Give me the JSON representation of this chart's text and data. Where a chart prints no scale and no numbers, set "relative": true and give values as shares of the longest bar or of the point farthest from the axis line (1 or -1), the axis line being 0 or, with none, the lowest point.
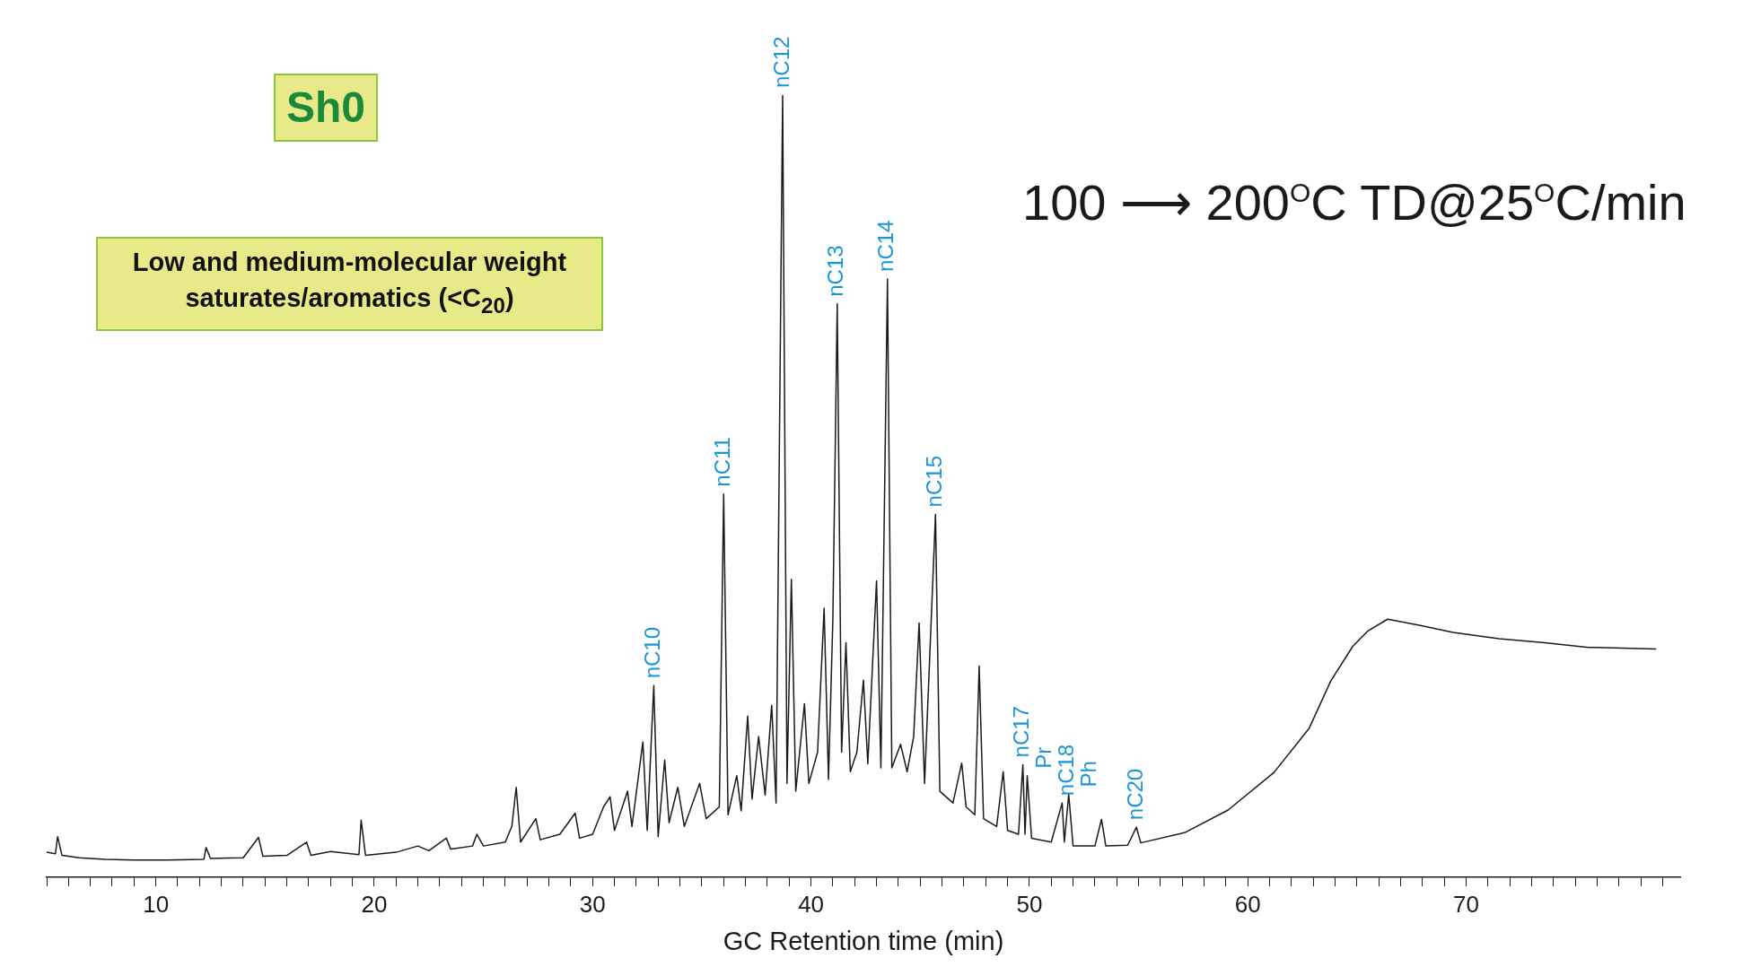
{
  "chart_data": {
    "type": "line",
    "relative": true,
    "xlabel": "GC Retention time (min)",
    "color": "#1a1a1a",
    "marker": "none",
    "grid": false,
    "legend": false,
    "xlim": [
      5,
      79.8
    ],
    "xticks": [
      {
        "value": 5,
        "label": null
      },
      {
        "value": 6,
        "label": null
      },
      {
        "value": 7,
        "label": null
      },
      {
        "value": 8,
        "label": null
      },
      {
        "value": 9,
        "label": null
      },
      10,
      {
        "value": 11,
        "label": null
      },
      {
        "value": 12,
        "label": null
      },
      {
        "value": 13,
        "label": null
      },
      {
        "value": 14,
        "label": null
      },
      {
        "value": 15,
        "label": null
      },
      {
        "value": 16,
        "label": null
      },
      {
        "value": 17,
        "label": null
      },
      {
        "value": 18,
        "label": null
      },
      {
        "value": 19,
        "label": null
      },
      20,
      {
        "value": 21,
        "label": null
      },
      {
        "value": 22,
        "label": null
      },
      {
        "value": 23,
        "label": null
      },
      {
        "value": 24,
        "label": null
      },
      {
        "value": 25,
        "label": null
      },
      {
        "value": 26,
        "label": null
      },
      {
        "value": 27,
        "label": null
      },
      {
        "value": 28,
        "label": null
      },
      {
        "value": 29,
        "label": null
      },
      30,
      {
        "value": 31,
        "label": null
      },
      {
        "value": 32,
        "label": null
      },
      {
        "value": 33,
        "label": null
      },
      {
        "value": 34,
        "label": null
      },
      {
        "value": 35,
        "label": null
      },
      {
        "value": 36,
        "label": null
      },
      {
        "value": 37,
        "label": null
      },
      {
        "value": 38,
        "label": null
      },
      {
        "value": 39,
        "label": null
      },
      40,
      {
        "value": 41,
        "label": null
      },
      {
        "value": 42,
        "label": null
      },
      {
        "value": 43,
        "label": null
      },
      {
        "value": 44,
        "label": null
      },
      {
        "value": 45,
        "label": null
      },
      {
        "value": 46,
        "label": null
      },
      {
        "value": 47,
        "label": null
      },
      {
        "value": 48,
        "label": null
      },
      {
        "value": 49,
        "label": null
      },
      50,
      {
        "value": 51,
        "label": null
      },
      {
        "value": 52,
        "label": null
      },
      {
        "value": 53,
        "label": null
      },
      {
        "value": 54,
        "label": null
      },
      {
        "value": 55,
        "label": null
      },
      {
        "value": 56,
        "label": null
      },
      {
        "value": 57,
        "label": null
      },
      {
        "value": 58,
        "label": null
      },
      {
        "value": 59,
        "label": null
      },
      60,
      {
        "value": 61,
        "label": null
      },
      {
        "value": 62,
        "label": null
      },
      {
        "value": 63,
        "label": null
      },
      {
        "value": 64,
        "label": null
      },
      {
        "value": 65,
        "label": null
      },
      {
        "value": 66,
        "label": null
      },
      {
        "value": 67,
        "label": null
      },
      {
        "value": 68,
        "label": null
      },
      {
        "value": 69,
        "label": null
      },
      70,
      {
        "value": 71,
        "label": null
      },
      {
        "value": 72,
        "label": null
      },
      {
        "value": 73,
        "label": null
      },
      {
        "value": 74,
        "label": null
      },
      {
        "value": 75,
        "label": null
      },
      {
        "value": 76,
        "label": null
      },
      {
        "value": 77,
        "label": null
      },
      {
        "value": 78,
        "label": null
      },
      {
        "value": 79,
        "label": null
      }
    ],
    "x": [
      5.0,
      5.4,
      5.5,
      5.7,
      6.5,
      7.7,
      9.0,
      10.5,
      12.2,
      12.3,
      12.5,
      14.0,
      14.7,
      14.9,
      16.0,
      16.9,
      17.1,
      18.0,
      19.3,
      19.4,
      19.6,
      21.0,
      22.0,
      22.5,
      23.3,
      23.5,
      24.5,
      24.7,
      25.0,
      26.0,
      26.3,
      26.5,
      26.7,
      27.4,
      27.6,
      28.5,
      29.2,
      29.4,
      30.0,
      30.5,
      30.8,
      31.0,
      31.6,
      31.8,
      32.3,
      32.5,
      32.8,
      33.0,
      33.3,
      33.5,
      33.9,
      34.2,
      34.9,
      35.2,
      35.8,
      36.0,
      36.2,
      36.6,
      36.8,
      37.1,
      37.3,
      37.6,
      37.9,
      38.2,
      38.4,
      38.7,
      38.9,
      39.1,
      39.3,
      39.7,
      39.9,
      40.3,
      40.6,
      40.8,
      41.0,
      41.2,
      41.4,
      41.6,
      41.8,
      42.1,
      42.4,
      42.6,
      43.0,
      43.2,
      43.5,
      43.7,
      44.1,
      44.4,
      44.7,
      44.95,
      45.2,
      45.7,
      45.9,
      46.5,
      46.9,
      47.1,
      47.5,
      47.7,
      47.9,
      48.5,
      48.8,
      49.0,
      49.5,
      49.7,
      49.8,
      49.9,
      50.1,
      51.0,
      51.5,
      51.6,
      51.8,
      52.0,
      53.0,
      53.3,
      53.5,
      54.5,
      54.9,
      55.1,
      57.1,
      59.1,
      61.2,
      62.8,
      63.8,
      64.8,
      65.5,
      66.4,
      67.9,
      69.4,
      71.5,
      73.6,
      75.6,
      78.7
    ],
    "values": [
      0.032,
      0.03,
      0.052,
      0.028,
      0.025,
      0.023,
      0.022,
      0.022,
      0.023,
      0.038,
      0.024,
      0.025,
      0.051,
      0.027,
      0.028,
      0.045,
      0.028,
      0.033,
      0.029,
      0.073,
      0.028,
      0.032,
      0.04,
      0.034,
      0.05,
      0.036,
      0.04,
      0.055,
      0.04,
      0.045,
      0.065,
      0.115,
      0.045,
      0.075,
      0.048,
      0.055,
      0.082,
      0.05,
      0.055,
      0.09,
      0.103,
      0.06,
      0.11,
      0.065,
      0.173,
      0.06,
      0.245,
      0.052,
      0.15,
      0.07,
      0.115,
      0.065,
      0.12,
      0.075,
      0.09,
      0.49,
      0.08,
      0.13,
      0.085,
      0.206,
      0.1,
      0.18,
      0.105,
      0.22,
      0.095,
      1.0,
      0.12,
      0.381,
      0.11,
      0.222,
      0.12,
      0.16,
      0.344,
      0.125,
      0.33,
      0.733,
      0.16,
      0.3,
      0.135,
      0.16,
      0.252,
      0.145,
      0.379,
      0.14,
      0.765,
      0.14,
      0.17,
      0.135,
      0.18,
      0.325,
      0.12,
      0.464,
      0.11,
      0.095,
      0.146,
      0.09,
      0.08,
      0.27,
      0.075,
      0.065,
      0.135,
      0.06,
      0.055,
      0.144,
      0.055,
      0.13,
      0.05,
      0.045,
      0.095,
      0.045,
      0.106,
      0.04,
      0.04,
      0.074,
      0.04,
      0.041,
      0.064,
      0.044,
      0.057,
      0.086,
      0.134,
      0.19,
      0.251,
      0.295,
      0.315,
      0.33,
      0.322,
      0.313,
      0.305,
      0.3,
      0.294,
      0.292
    ],
    "annotations": [
      "Sh0",
      "Low and medium-molecular weight saturates/aromatics (<C$_{20}$)",
      "100 ⟶ 200$^{O}$C TD@25$^{O}$C/min",
      {
        "text": "nC10",
        "x": 32.8,
        "y": 0.245
      },
      {
        "text": "nC11",
        "x": 36.0,
        "y": 0.49
      },
      {
        "text": "nC12",
        "x": 38.7,
        "y": 1.0
      },
      {
        "text": "nC13",
        "x": 41.2,
        "y": 0.733
      },
      {
        "text": "nC14",
        "x": 43.5,
        "y": 0.765
      },
      {
        "text": "nC15",
        "x": 45.7,
        "y": 0.464
      },
      {
        "text": "nC17",
        "x": 49.7,
        "y": 0.144
      },
      {
        "text": "Pr",
        "x": 49.9,
        "y": 0.13
      },
      {
        "text": "nC18",
        "x": 51.5,
        "y": 0.095
      },
      {
        "text": "Ph",
        "x": 51.8,
        "y": 0.106
      },
      {
        "text": "nC20",
        "x": 54.9,
        "y": 0.064
      }
    ]
  }
}
